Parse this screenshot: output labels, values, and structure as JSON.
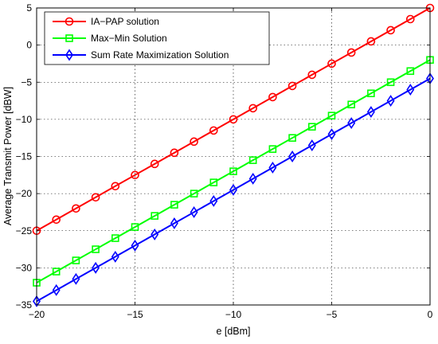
{
  "chart_data": {
    "type": "line",
    "title": "",
    "xlabel": "e [dBm]",
    "ylabel": "Average Transmit Power [dBW]",
    "xlim": [
      -20,
      0
    ],
    "ylim": [
      -35,
      5
    ],
    "xticks": [
      -20,
      -15,
      -10,
      -5,
      0
    ],
    "yticks": [
      5,
      0,
      -5,
      -10,
      -15,
      -20,
      -25,
      -30,
      -35
    ],
    "grid": true,
    "legend_position": "top-left",
    "x": [
      -20,
      -19,
      -18,
      -17,
      -16,
      -15,
      -14,
      -13,
      -12,
      -11,
      -10,
      -9,
      -8,
      -7,
      -6,
      -5,
      -4,
      -3,
      -2,
      -1,
      0
    ],
    "series": [
      {
        "name": "IA−PAP solution",
        "color": "#ff0000",
        "marker": "circle",
        "values": [
          -25,
          -23.5,
          -22,
          -20.5,
          -19,
          -17.5,
          -16,
          -14.5,
          -13,
          -11.5,
          -10,
          -8.5,
          -7,
          -5.5,
          -4,
          -2.5,
          -1,
          0.5,
          2,
          3.5,
          5
        ]
      },
      {
        "name": "Max−Min Solution",
        "color": "#00ff00",
        "marker": "square",
        "values": [
          -32,
          -30.5,
          -29,
          -27.5,
          -26,
          -24.5,
          -23,
          -21.5,
          -20,
          -18.5,
          -17,
          -15.5,
          -14,
          -12.5,
          -11,
          -9.5,
          -8,
          -6.5,
          -5,
          -3.5,
          -2
        ]
      },
      {
        "name": "Sum Rate Maximization Solution",
        "color": "#0000ff",
        "marker": "diamond",
        "values": [
          -34.5,
          -33,
          -31.5,
          -30,
          -28.5,
          -27,
          -25.5,
          -24,
          -22.5,
          -21,
          -19.5,
          -18,
          -16.5,
          -15,
          -13.5,
          -12,
          -10.5,
          -9,
          -7.5,
          -6,
          -4.5
        ]
      }
    ]
  }
}
